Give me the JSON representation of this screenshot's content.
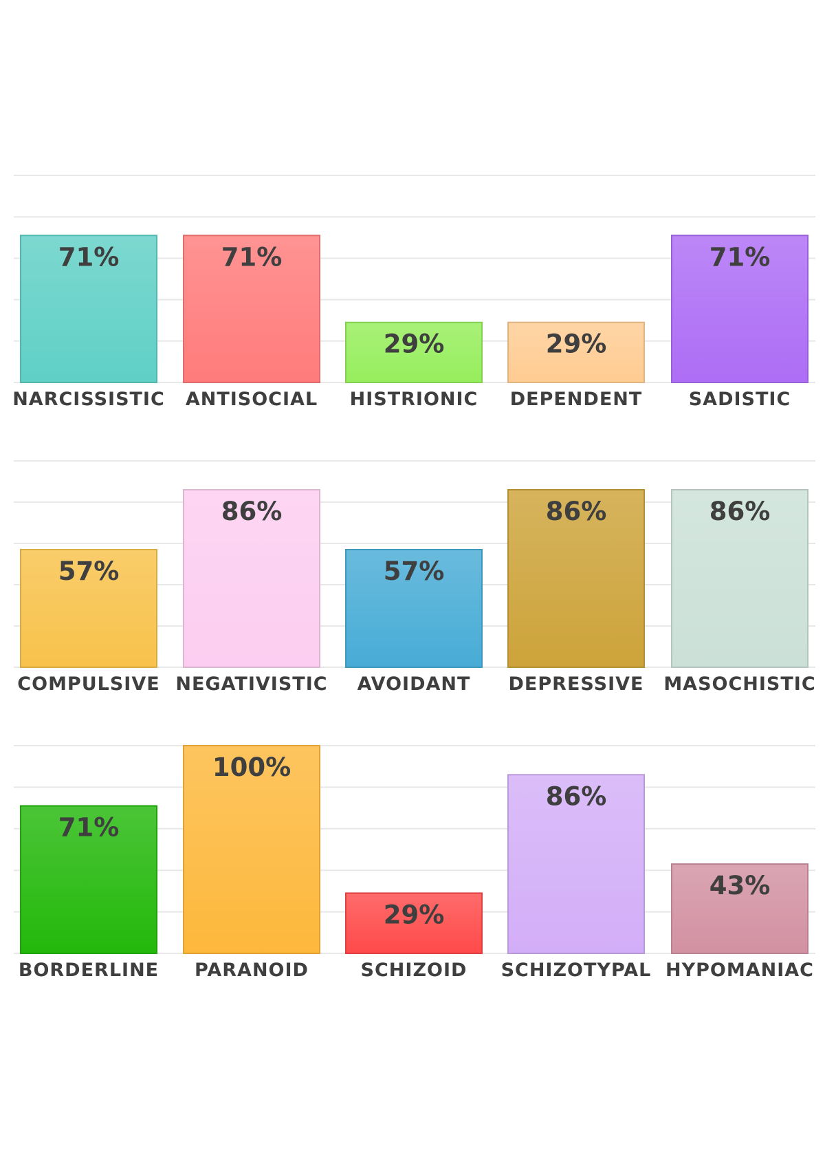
{
  "chart_data": [
    {
      "type": "bar",
      "ylim": [
        0,
        100
      ],
      "grid": true,
      "categories": [
        "NARCISSISTIC",
        "ANTISOCIAL",
        "HISTRIONIC",
        "DEPENDENT",
        "SADISTIC"
      ],
      "values": [
        71,
        71,
        29,
        29,
        71
      ],
      "labels": [
        "71%",
        "71%",
        "29%",
        "29%",
        "71%"
      ],
      "colors": [
        "#5fd0c6",
        "#ff7b7b",
        "#96ee5c",
        "#ffcc92",
        "#ad6df5"
      ]
    },
    {
      "type": "bar",
      "ylim": [
        0,
        100
      ],
      "grid": true,
      "categories": [
        "COMPULSIVE",
        "NEGATIVISTIC",
        "AVOIDANT",
        "DEPRESSIVE",
        "MASOCHISTIC"
      ],
      "values": [
        57,
        86,
        57,
        86,
        86
      ],
      "labels": [
        "57%",
        "86%",
        "57%",
        "86%",
        "86%"
      ],
      "colors": [
        "#f8c24b",
        "#fccdf0",
        "#48acd6",
        "#cda33a",
        "#cbe0d7"
      ]
    },
    {
      "type": "bar",
      "ylim": [
        0,
        100
      ],
      "grid": true,
      "categories": [
        "BORDERLINE",
        "PARANOID",
        "SCHIZOID",
        "SCHIZOTYPAL",
        "HYPOMANIAC"
      ],
      "values": [
        71,
        100,
        29,
        86,
        43
      ],
      "labels": [
        "71%",
        "100%",
        "29%",
        "86%",
        "43%"
      ],
      "colors": [
        "#23b80b",
        "#fdb83c",
        "#ff4a4a",
        "#d3aef8",
        "#d291a2"
      ]
    }
  ]
}
